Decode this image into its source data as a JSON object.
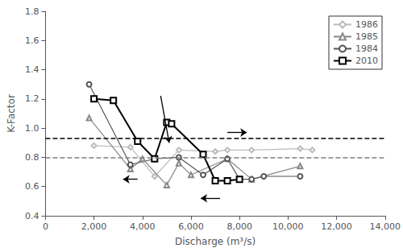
{
  "chart_data": {
    "type": "line",
    "xlabel": "Discharge (m³/s)",
    "ylabel": "K-Factor",
    "series": [
      {
        "name": "1986",
        "color": "#bbbbbb",
        "marker": "diamond",
        "x": [
          2000,
          3500,
          4500,
          5500,
          7000,
          7500,
          8500,
          10500,
          11000
        ],
        "values": [
          0.88,
          0.87,
          0.67,
          0.85,
          0.84,
          0.85,
          0.85,
          0.86,
          0.85
        ]
      },
      {
        "name": "1985",
        "color": "#888888",
        "marker": "triangle",
        "x": [
          1800,
          3500,
          4000,
          5000,
          5500,
          6000,
          7500,
          8500,
          10500
        ],
        "values": [
          1.07,
          0.72,
          0.79,
          0.61,
          0.76,
          0.68,
          0.79,
          0.65,
          0.74
        ]
      },
      {
        "name": "1984",
        "color": "#555555",
        "marker": "circle",
        "x": [
          1800,
          3500,
          4500,
          5500,
          6500,
          7500,
          8000,
          8500,
          9000,
          10500
        ],
        "values": [
          1.3,
          0.75,
          0.79,
          0.8,
          0.68,
          0.79,
          0.65,
          0.65,
          0.67,
          0.67
        ]
      },
      {
        "name": "2010",
        "color": "#000000",
        "marker": "square",
        "x": [
          2000,
          2800,
          3800,
          4500,
          5000,
          5200,
          6500,
          7000,
          7500,
          8000
        ],
        "values": [
          1.2,
          1.19,
          0.91,
          0.79,
          1.04,
          1.03,
          0.82,
          0.64,
          0.64,
          0.65
        ]
      }
    ],
    "xlim": [
      0,
      14000
    ],
    "ylim": [
      0.4,
      1.8
    ],
    "xticks": [
      0,
      {
        "value": 2000,
        "label": "2,000"
      },
      {
        "value": 4000,
        "label": "4,000"
      },
      {
        "value": 6000,
        "label": "6,000"
      },
      {
        "value": 8000,
        "label": "8,000"
      },
      {
        "value": 10000,
        "label": "10,000"
      },
      {
        "value": 12000,
        "label": "12,000"
      },
      {
        "value": 14000,
        "label": "14,000"
      }
    ],
    "yticks": [
      0.4,
      0.6,
      0.8,
      {
        "value": 1.0,
        "label": "1.0"
      },
      1.2,
      1.4,
      1.6,
      1.8
    ],
    "grid": false,
    "legend": "upper right",
    "reference_lines": [
      {
        "y": 0.93,
        "color": "black",
        "line_style": "dashed"
      },
      {
        "y": 0.8,
        "color": "gray",
        "line_style": "dashed"
      }
    ],
    "arrows": [
      {
        "x1": 4750,
        "y1": 1.22,
        "x2": 5100,
        "y2": 0.9
      },
      {
        "x1": 7500,
        "y1": 0.97,
        "x2": 8300,
        "y2": 0.97
      },
      {
        "x1": 3800,
        "y1": 0.65,
        "x2": 3200,
        "y2": 0.65
      },
      {
        "x1": 7200,
        "y1": 0.52,
        "x2": 6400,
        "y2": 0.52
      }
    ]
  }
}
